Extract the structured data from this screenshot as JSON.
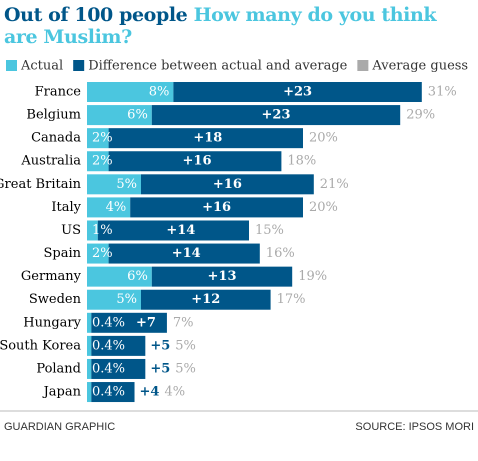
{
  "chart_data": {
    "type": "stacked-bar-horizontal",
    "title": "Out of 100 people",
    "subtitle": "How many do you think are Muslim?",
    "categories": [
      "France",
      "Belgium",
      "Canada",
      "Australia",
      "Great Britain",
      "Italy",
      "US",
      "Spain",
      "Germany",
      "Sweden",
      "Hungary",
      "South Korea",
      "Poland",
      "Japan"
    ],
    "series": [
      {
        "name": "Actual",
        "color": "#4bc6df",
        "values": [
          8,
          6,
          2,
          2,
          5,
          4,
          1,
          2,
          6,
          5,
          0.4,
          0.4,
          0.4,
          0.4
        ],
        "value_labels": [
          "8%",
          "6%",
          "2%",
          "2%",
          "5%",
          "4%",
          "1%",
          "2%",
          "6%",
          "5%",
          "0.4%",
          "0.4%",
          "0.4%",
          "0.4%"
        ]
      },
      {
        "name": "Difference between actual and average",
        "color": "#005689",
        "values": [
          23,
          23,
          18,
          16,
          16,
          16,
          14,
          14,
          13,
          12,
          7,
          5,
          5,
          4
        ],
        "value_labels": [
          "+23",
          "+23",
          "+18",
          "+16",
          "+16",
          "+16",
          "+14",
          "+14",
          "+13",
          "+12",
          "+7",
          "+5",
          "+5",
          "+4"
        ]
      },
      {
        "name": "Average guess",
        "color": "#aaaaaa",
        "values": [
          31,
          29,
          20,
          18,
          21,
          20,
          15,
          16,
          19,
          17,
          7,
          5,
          5,
          4
        ],
        "value_labels": [
          "31%",
          "29%",
          "20%",
          "18%",
          "21%",
          "20%",
          "15%",
          "16%",
          "19%",
          "17%",
          "7%",
          "5%",
          "5%",
          "4%"
        ]
      }
    ],
    "credit": "GUARDIAN GRAPHIC",
    "source": "SOURCE: IPSOS MORI"
  }
}
